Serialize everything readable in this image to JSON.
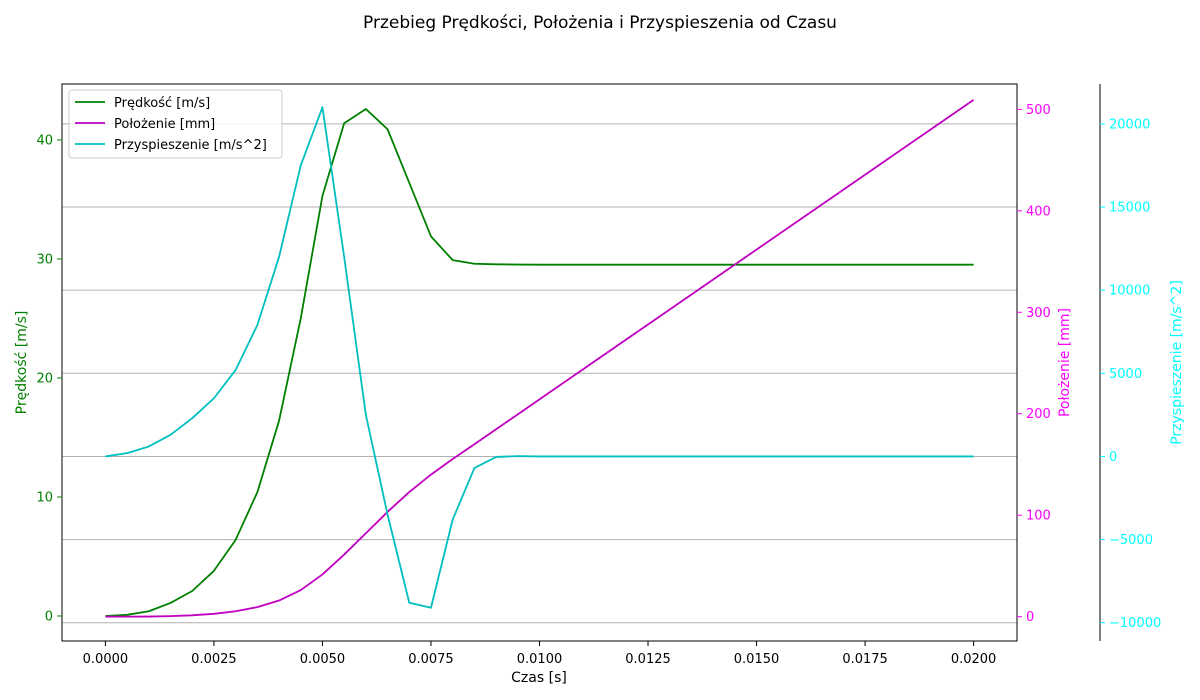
{
  "chart_data": {
    "type": "line",
    "title": "Przebieg Prędkości, Położenia i Przyspieszenia od Czasu",
    "xlabel": "Czas [s]",
    "xlim": [
      -0.001,
      0.021
    ],
    "x_ticks": [
      0,
      0.0025,
      0.005,
      0.0075,
      0.01,
      0.0125,
      0.015,
      0.0175,
      0.02
    ],
    "x_tick_labels": [
      "0.0000",
      "0.0025",
      "0.0050",
      "0.0075",
      "0.0100",
      "0.0125",
      "0.0150",
      "0.0175",
      "0.0200"
    ],
    "grid": "horizontal lines aligned with acceleration axis ticks",
    "legend_position": "top-left",
    "x": [
      0,
      0.0005,
      0.001,
      0.0015,
      0.002,
      0.0025,
      0.003,
      0.0035,
      0.004,
      0.0045,
      0.005,
      0.0055,
      0.006,
      0.0065,
      0.007,
      0.0075,
      0.008,
      0.0085,
      0.009,
      0.0095,
      0.01,
      0.0125,
      0.015,
      0.0175,
      0.02
    ],
    "axes": [
      {
        "key": "velocity",
        "side": "left",
        "label": "Prędkość [m/s]",
        "color": "#008000",
        "ylim": [
          -2.1,
          44.7
        ],
        "ticks": [
          0,
          10,
          20,
          30,
          40
        ],
        "tick_labels": [
          "0",
          "10",
          "20",
          "30",
          "40"
        ]
      },
      {
        "key": "position",
        "side": "right",
        "label": "Położenie [mm]",
        "color": "#ff00ff",
        "ylim": [
          -24,
          525
        ],
        "ticks": [
          0,
          100,
          200,
          300,
          400,
          500
        ],
        "tick_labels": [
          "0",
          "100",
          "200",
          "300",
          "400",
          "500"
        ]
      },
      {
        "key": "acceleration",
        "side": "right-offset",
        "label": "Przyspieszenie [m/s^2]",
        "color": "#00ffff",
        "ylim": [
          -11100,
          22400
        ],
        "ticks": [
          -10000,
          -5000,
          0,
          5000,
          10000,
          15000,
          20000
        ],
        "tick_labels": [
          "−10000",
          "−5000",
          "0",
          "5000",
          "10000",
          "15000",
          "20000"
        ]
      }
    ],
    "series": [
      {
        "name": "Prędkość [m/s]",
        "axis": "velocity",
        "color": "#008000",
        "values": [
          0,
          0.1,
          0.4,
          1.1,
          2.1,
          3.8,
          6.4,
          10.4,
          16.4,
          25,
          35.3,
          41.4,
          42.6,
          40.9,
          36.4,
          31.9,
          29.9,
          29.6,
          29.55,
          29.53,
          29.52,
          29.52,
          29.52,
          29.52,
          29.52
        ]
      },
      {
        "name": "Położenie [mm]",
        "axis": "position",
        "color": "#c000c0",
        "values": [
          0,
          0,
          0.1,
          0.5,
          1.3,
          2.8,
          5.3,
          9.4,
          15.9,
          26.2,
          41.6,
          61.2,
          82.2,
          103.3,
          122.8,
          140,
          155.4,
          169.9,
          184.7,
          199.4,
          214.2,
          288,
          361.8,
          435.6,
          509.4
        ]
      },
      {
        "name": "Przyspieszenie [m/s^2]",
        "axis": "acceleration",
        "color": "#00bfbf",
        "values": [
          0,
          200,
          600,
          1300,
          2300,
          3500,
          5200,
          7900,
          12000,
          17500,
          21000,
          12000,
          2500,
          -3500,
          -8800,
          -9100,
          -3800,
          -700,
          -30,
          20,
          0,
          0,
          0,
          0,
          0
        ]
      }
    ]
  }
}
